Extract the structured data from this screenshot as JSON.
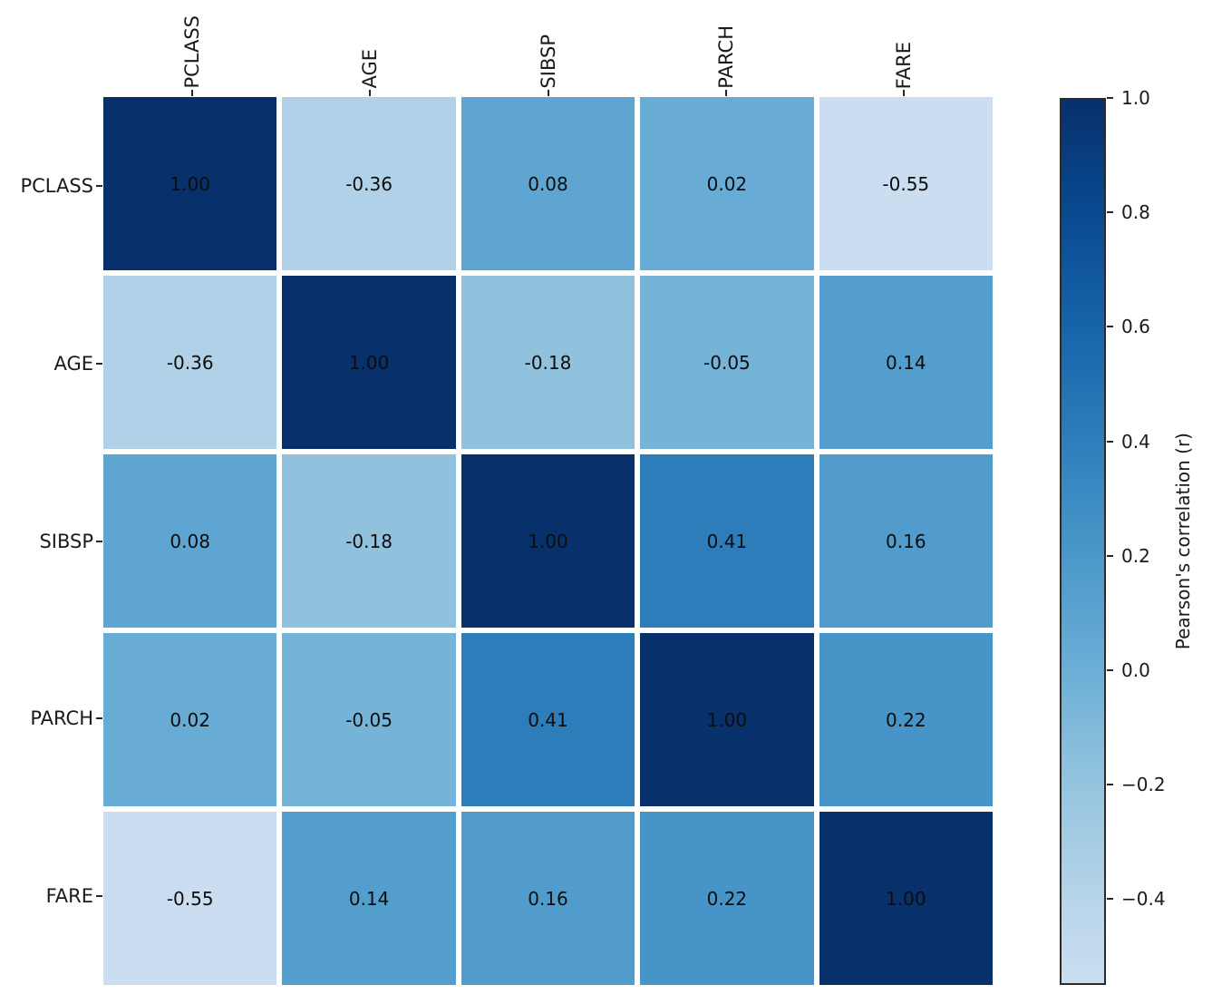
{
  "chart_data": {
    "type": "heatmap",
    "title": "",
    "categories": [
      "PCLASS",
      "AGE",
      "SIBSP",
      "PARCH",
      "FARE"
    ],
    "matrix": [
      [
        1.0,
        -0.36,
        0.08,
        0.02,
        -0.55
      ],
      [
        -0.36,
        1.0,
        -0.18,
        -0.05,
        0.14
      ],
      [
        0.08,
        -0.18,
        1.0,
        0.41,
        0.16
      ],
      [
        0.02,
        -0.05,
        0.41,
        1.0,
        0.22
      ],
      [
        -0.55,
        0.14,
        0.16,
        0.22,
        1.0
      ]
    ],
    "cell_colors": [
      [
        "#08306b",
        "#b0d1e7",
        "#5ea5d1",
        "#68acd5",
        "#cbdef1"
      ],
      [
        "#b0d1e7",
        "#08306b",
        "#90c2de",
        "#75b4d8",
        "#549ecd"
      ],
      [
        "#5ea5d1",
        "#90c2de",
        "#08306b",
        "#2d7dbb",
        "#519ccc"
      ],
      [
        "#68acd5",
        "#75b4d8",
        "#2d7dbb",
        "#08306b",
        "#4795c8"
      ],
      [
        "#cbdef1",
        "#549ecd",
        "#519ccc",
        "#4795c8",
        "#08306b"
      ]
    ],
    "value_decimals": 2,
    "colormap": "Blues",
    "annotation_color": "#0d0d0d",
    "grid_gap_color": "#ffffff",
    "colorbar": {
      "label": "Pearson's correlation (r)",
      "range_top": 1.0,
      "range_bottom": -0.55,
      "tick_labels": [
        "1.0",
        "0.8",
        "0.6",
        "0.4",
        "0.2",
        "0.0",
        "−0.2",
        "−0.4"
      ],
      "tick_positions_pct": [
        0,
        12.903,
        25.806,
        38.71,
        51.613,
        64.516,
        77.419,
        90.323
      ],
      "gradient_stops": [
        {
          "pct": 0,
          "color": "#08306b"
        },
        {
          "pct": 12.903,
          "color": "#084a92"
        },
        {
          "pct": 25.806,
          "color": "#1764ab"
        },
        {
          "pct": 38.71,
          "color": "#2e7ebc"
        },
        {
          "pct": 51.613,
          "color": "#4a98c9"
        },
        {
          "pct": 64.516,
          "color": "#6baed6"
        },
        {
          "pct": 77.419,
          "color": "#94c4df"
        },
        {
          "pct": 90.323,
          "color": "#b6d4e9"
        },
        {
          "pct": 100,
          "color": "#cbdef1"
        }
      ]
    }
  },
  "colors": {
    "background": "#ffffff",
    "tick_color": "#262626",
    "text_color": "#1a1a1a"
  }
}
